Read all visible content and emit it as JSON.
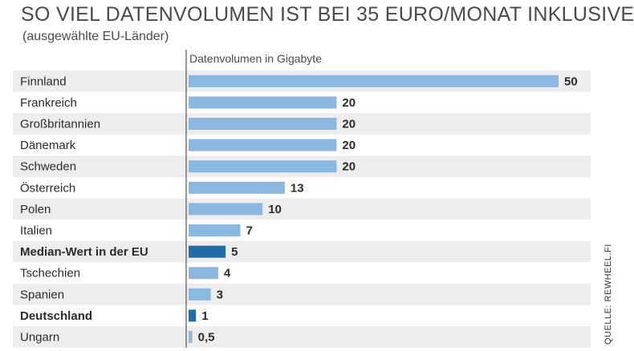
{
  "chart_data": {
    "type": "bar",
    "orientation": "horizontal",
    "title": "SO VIEL DATENVOLUMEN IST BEI 35 EURO/MONAT INKLUSIVE",
    "subtitle": "(ausgewählte EU-Länder)",
    "xlabel": "Datenvolumen in Gigabyte",
    "source": "QUELLE: REWHEEL.FI",
    "xlim": [
      0,
      50
    ],
    "grid": false,
    "categories": [
      "Finnland",
      "Frankreich",
      "Großbritannien",
      "Dänemark",
      "Schweden",
      "Österreich",
      "Polen",
      "Italien",
      "Median-Wert in der EU",
      "Tschechien",
      "Spanien",
      "Deutschland",
      "Ungarn"
    ],
    "values": [
      50,
      20,
      20,
      20,
      20,
      13,
      10,
      7,
      5,
      4,
      3,
      1,
      0.5
    ],
    "value_labels": [
      "50",
      "20",
      "20",
      "20",
      "20",
      "13",
      "10",
      "7",
      "5",
      "4",
      "3",
      "1",
      "0,5"
    ],
    "highlighted": [
      "Median-Wert in der EU",
      "Deutschland"
    ],
    "colors": {
      "bar": "#8ab8e0",
      "highlight": "#1f6ea8",
      "stripe": "#ededed",
      "axis": "#555555"
    }
  }
}
